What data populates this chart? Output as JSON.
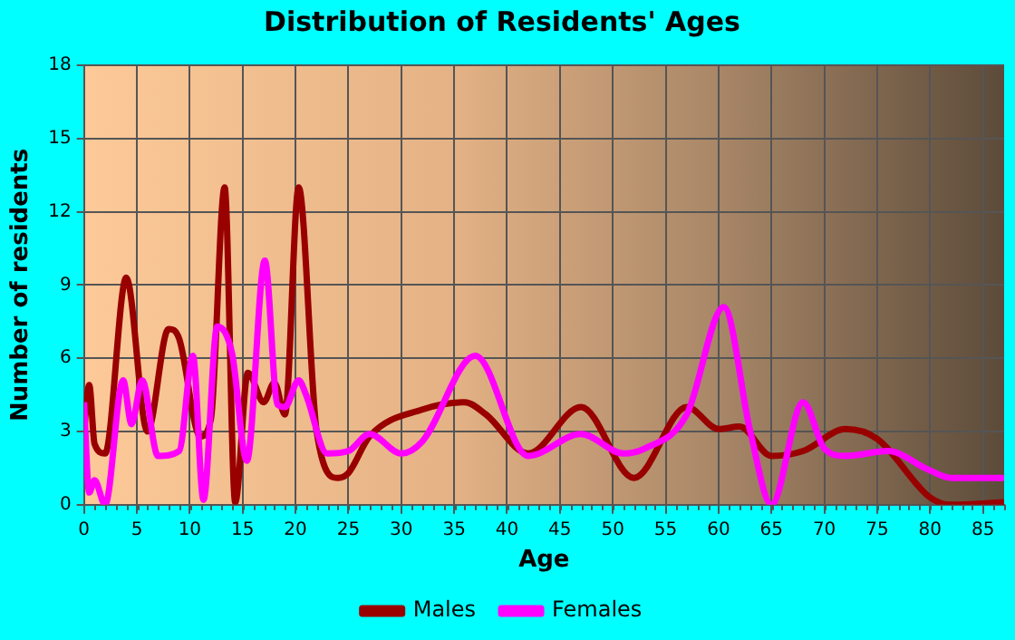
{
  "chart_data": {
    "type": "line",
    "title": "Distribution of Residents' Ages",
    "xlabel": "Age",
    "ylabel": "Number of residents",
    "xlim": [
      0,
      87
    ],
    "xticks": [
      0,
      5,
      10,
      15,
      20,
      25,
      30,
      35,
      40,
      45,
      50,
      55,
      60,
      65,
      70,
      75,
      80,
      85
    ],
    "ylim": [
      0,
      18
    ],
    "yticks": [
      0,
      3,
      6,
      9,
      12,
      15,
      18
    ],
    "grid": true,
    "legend": "bottom",
    "marker": "none",
    "line_style": "solid",
    "series": [
      {
        "name": "Males",
        "color": "#990000",
        "x": [
          0,
          0.5,
          1,
          2,
          4,
          6,
          8,
          9,
          11,
          12,
          13.3,
          14.3,
          15.5,
          17,
          18,
          19,
          20.3,
          22,
          24,
          25,
          27,
          32,
          36,
          38,
          42,
          47,
          52,
          57,
          60,
          62,
          65,
          68,
          72,
          75,
          80,
          82,
          87
        ],
        "values": [
          3,
          4.9,
          2.5,
          2.1,
          9.3,
          3,
          7.2,
          6.8,
          2.8,
          3.5,
          13,
          0.1,
          5.4,
          4.2,
          5,
          3.7,
          13,
          3,
          1.1,
          1.3,
          2.8,
          3.9,
          4.2,
          3.7,
          2.1,
          4,
          1.1,
          4,
          3.1,
          3.2,
          2,
          2.2,
          3.1,
          2.7,
          0.3,
          0,
          0.1
        ]
      },
      {
        "name": "Females",
        "color": "#ff00ff",
        "x": [
          0,
          0.5,
          1,
          2,
          3.7,
          4.5,
          5.5,
          7,
          9,
          10.3,
          11.3,
          12.6,
          14,
          15.4,
          17.1,
          18.3,
          19,
          20.3,
          21,
          23,
          25,
          27,
          30,
          32,
          37,
          42,
          47,
          51,
          53,
          57,
          60.5,
          63,
          65,
          68,
          70,
          72,
          76,
          80,
          82,
          87
        ],
        "values": [
          4.2,
          0.5,
          1,
          0,
          5.1,
          3.3,
          5.1,
          2,
          2.2,
          6.1,
          0.2,
          7.3,
          6.2,
          1.8,
          10,
          4.1,
          4,
          5.1,
          4.5,
          2.1,
          2.2,
          2.9,
          2.1,
          2.6,
          6.1,
          2,
          2.9,
          2.1,
          2.3,
          3.7,
          8.1,
          3,
          0,
          4.2,
          2.3,
          2,
          2.2,
          1.4,
          1.1,
          1.1
        ]
      }
    ]
  }
}
